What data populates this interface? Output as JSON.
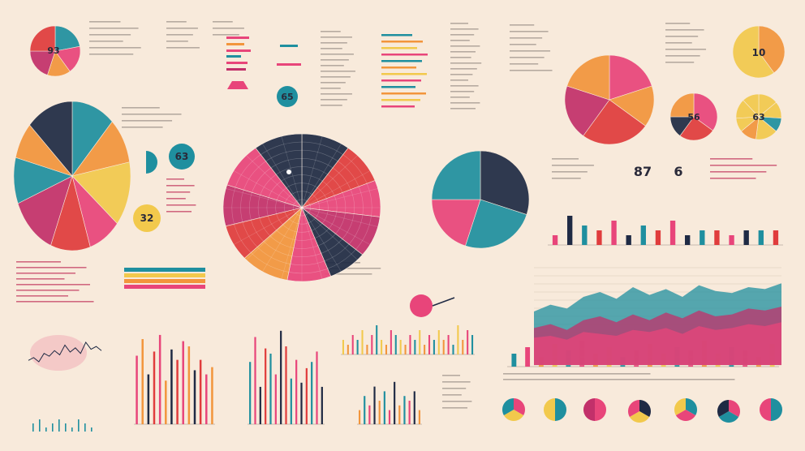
{
  "colors": {
    "background": "#f8eadb",
    "teal": "#1f8f9f",
    "pink": "#e8457a",
    "orange": "#f2953c",
    "yellow": "#f2c94c",
    "navy": "#1f2a44",
    "red": "#e03c3c",
    "magenta": "#c2306a",
    "text": "#2a2a3a"
  },
  "labels": {
    "pie_top_left": "93",
    "pie_top_right": "10",
    "donut_teal": "63",
    "pie_right_small": "56",
    "pie_right_yellow": "63",
    "circle_mid": "32",
    "badge_top": "65",
    "stat_a": "87",
    "stat_b": "6"
  },
  "chart_data": [
    {
      "type": "pie",
      "values": [
        22,
        18,
        15,
        20,
        25
      ]
    },
    {
      "type": "pie",
      "values": [
        12,
        10,
        14,
        9,
        11,
        13,
        10,
        8,
        13
      ]
    },
    {
      "type": "pie",
      "values": [
        30,
        25,
        20,
        25
      ]
    },
    {
      "type": "pie",
      "values": [
        20,
        15,
        25,
        20,
        20
      ]
    },
    {
      "type": "pie",
      "values": [
        40,
        60
      ]
    },
    {
      "type": "pie",
      "values": [
        10,
        9,
        8,
        9,
        8,
        9,
        10,
        8,
        9,
        10,
        10
      ]
    },
    {
      "type": "pie",
      "values": [
        35,
        25,
        15,
        25
      ]
    },
    {
      "type": "pie",
      "values": [
        14,
        12,
        10,
        16,
        12,
        10,
        14,
        12
      ]
    },
    {
      "type": "bar",
      "values": [
        2,
        6,
        4,
        3,
        5,
        2,
        4,
        3,
        5,
        2,
        3,
        3,
        2,
        3,
        3,
        3
      ],
      "ylim": [
        0,
        7
      ]
    },
    {
      "type": "bar",
      "values": [
        66,
        82,
        48,
        70,
        86,
        42,
        72,
        62,
        80,
        75,
        52,
        62,
        48,
        55
      ],
      "ylim": [
        0,
        100
      ]
    },
    {
      "type": "bar",
      "values": [
        60,
        84,
        36,
        73,
        68,
        48,
        90,
        75,
        44,
        62,
        40,
        54,
        60,
        70,
        36
      ],
      "ylim": [
        0,
        100
      ]
    },
    {
      "type": "bar",
      "values": [
        3,
        2,
        4,
        3,
        5,
        2,
        4,
        6,
        3,
        2,
        5,
        4,
        3,
        2,
        4,
        3,
        5,
        2,
        4,
        3,
        5,
        3,
        4,
        2,
        6,
        3,
        5,
        4
      ],
      "ylim": [
        0,
        7
      ]
    },
    {
      "type": "bar",
      "values": [
        3,
        6,
        4,
        8,
        5,
        7,
        3,
        9,
        4,
        6,
        5,
        7,
        3
      ],
      "ylim": [
        0,
        10
      ]
    },
    {
      "type": "bar",
      "values": [
        4,
        6,
        3,
        7,
        5,
        8,
        4,
        6,
        3,
        5,
        7,
        4,
        6,
        5,
        8,
        4,
        6,
        5,
        3,
        7
      ],
      "ylim": [
        0,
        10
      ]
    },
    {
      "type": "area",
      "x": [
        0,
        1,
        2,
        3,
        4,
        5,
        6,
        7,
        8,
        9,
        10,
        11,
        12,
        13,
        14,
        15
      ],
      "series": [
        {
          "values": [
            55,
            62,
            58,
            70,
            75,
            68,
            80,
            72,
            78,
            70,
            82,
            76,
            74,
            80,
            78,
            84
          ]
        },
        {
          "values": [
            38,
            42,
            36,
            46,
            50,
            44,
            52,
            46,
            54,
            48,
            56,
            50,
            52,
            58,
            56,
            60
          ]
        },
        {
          "values": [
            28,
            30,
            26,
            34,
            32,
            30,
            36,
            34,
            38,
            32,
            40,
            36,
            38,
            42,
            40,
            44
          ]
        }
      ],
      "ylim": [
        0,
        100
      ]
    },
    {
      "type": "line",
      "x": [
        0,
        1,
        2,
        3,
        4,
        5,
        6,
        7,
        8,
        9,
        10,
        11,
        12,
        13,
        14
      ],
      "series": [
        {
          "values": [
            30,
            34,
            28,
            40,
            36,
            44,
            38,
            52,
            42,
            48,
            40,
            56,
            46,
            50,
            44
          ]
        }
      ],
      "ylim": [
        0,
        70
      ]
    },
    {
      "type": "bar",
      "values": [
        2,
        3,
        1,
        2,
        3,
        2,
        1,
        3,
        2,
        1
      ],
      "ylim": [
        0,
        4
      ]
    }
  ]
}
